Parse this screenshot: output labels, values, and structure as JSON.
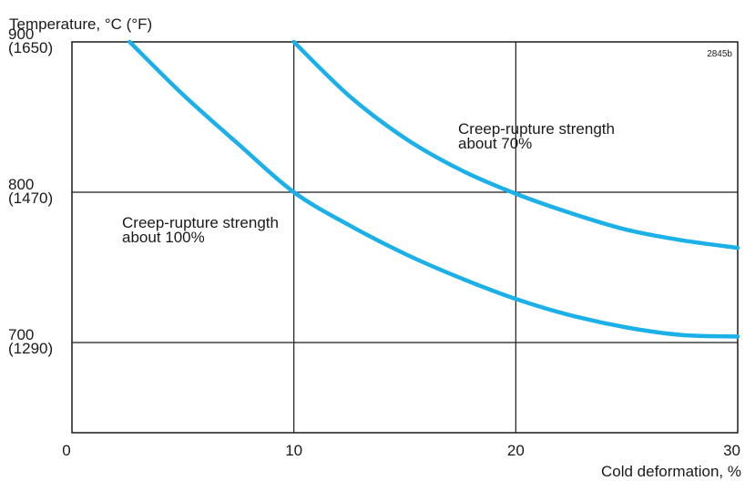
{
  "chart_data": {
    "type": "line",
    "xlabel": "Cold deformation, %",
    "ylabel": "Temperature, °C (°F)",
    "xlim": [
      0,
      30
    ],
    "ylim": [
      640,
      900
    ],
    "grid": true,
    "figure_code": "2845b",
    "x_ticks": [
      "0",
      "10",
      "20",
      "30"
    ],
    "y_ticks": [
      {
        "value": 900,
        "label_c": "900",
        "label_f": "(1650)"
      },
      {
        "value": 800,
        "label_c": "800",
        "label_f": "(1470)"
      },
      {
        "value": 700,
        "label_c": "700",
        "label_f": "(1290)"
      }
    ],
    "series": [
      {
        "label_line1": "Creep-rupture strength",
        "label_line2": "about 100%",
        "color": "#1bb0e8",
        "x": [
          2.6,
          5,
          7.5,
          10,
          12.5,
          15,
          17.5,
          20,
          22.5,
          25,
          27.5,
          30
        ],
        "y": [
          900,
          865,
          832,
          800,
          778,
          759,
          743,
          729,
          718,
          710,
          705,
          704
        ]
      },
      {
        "label_line1": "Creep-rupture strength",
        "label_line2": "about 70%",
        "color": "#1bb0e8",
        "x": [
          10,
          12.5,
          15,
          17.5,
          20,
          22.5,
          25,
          27.5,
          30
        ],
        "y": [
          900,
          864,
          836,
          815,
          799,
          786,
          775,
          768,
          763
        ]
      }
    ]
  }
}
